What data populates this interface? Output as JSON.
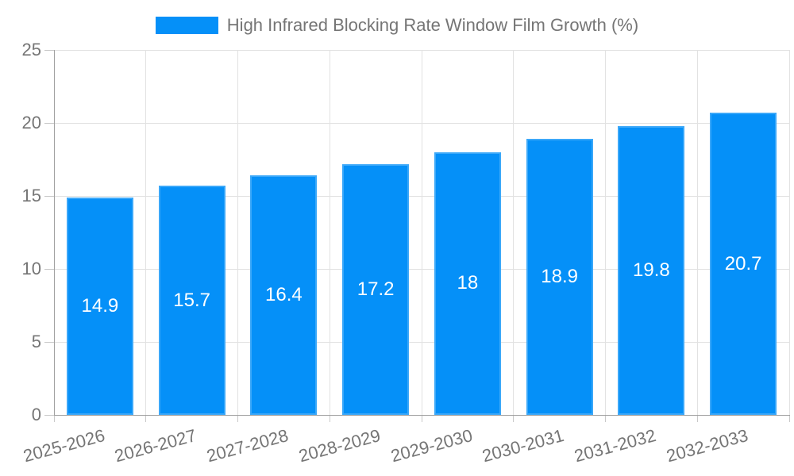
{
  "legend": {
    "label": "High Infrared Blocking Rate Window Film Growth (%)"
  },
  "chart_data": {
    "type": "bar",
    "title": "High Infrared Blocking Rate Window Film Growth (%)",
    "series_name": "High Infrared Blocking Rate Window Film Growth (%)",
    "categories": [
      "2025-2026",
      "2026-2027",
      "2027-2028",
      "2028-2029",
      "2029-2030",
      "2030-2031",
      "2031-2032",
      "2032-2033"
    ],
    "values": [
      14.9,
      15.7,
      16.4,
      17.2,
      18,
      18.9,
      19.8,
      20.7
    ],
    "value_labels": [
      "14.9",
      "15.7",
      "16.4",
      "17.2",
      "18",
      "18.9",
      "19.8",
      "20.7"
    ],
    "xlabel": "",
    "ylabel": "",
    "ylim": [
      0,
      25
    ],
    "yticks": [
      0,
      5,
      10,
      15,
      20,
      25
    ],
    "grid": true,
    "legend_position": "top-center",
    "colors": {
      "bar": "#0590f8",
      "value_text": "#ffffff",
      "axis_text": "#757575",
      "grid": "#e2e2e2",
      "axis_line": "#a0a0a0"
    }
  }
}
